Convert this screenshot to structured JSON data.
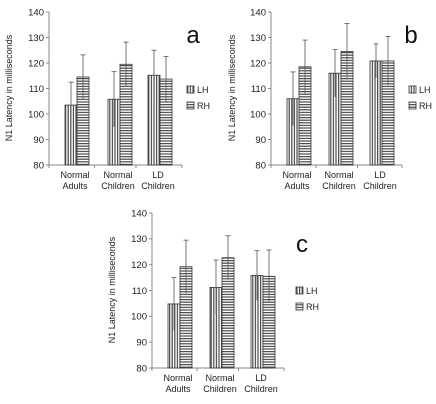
{
  "chart_data": [
    {
      "type": "bar",
      "panel_label": "a",
      "ylabel": "N1 Latency in milliseconds",
      "ylim": [
        80,
        140
      ],
      "yticks": [
        80,
        90,
        100,
        110,
        120,
        130,
        140
      ],
      "categories": [
        [
          "Normal",
          "Adults"
        ],
        [
          "Normal",
          "Children"
        ],
        [
          "LD",
          "Children"
        ]
      ],
      "series": [
        {
          "name": "LH",
          "values": [
            103.5,
            105.8,
            115.2
          ],
          "errors": [
            9.0,
            10.8,
            9.8
          ],
          "pattern": "vertical"
        },
        {
          "name": "RH",
          "values": [
            114.5,
            119.5,
            113.7
          ],
          "errors": [
            8.7,
            8.7,
            8.8
          ],
          "pattern": "horizontal"
        }
      ],
      "legend": "right",
      "grid": false
    },
    {
      "type": "bar",
      "panel_label": "b",
      "ylabel": "N1 Latency in milliseconds",
      "ylim": [
        80,
        140
      ],
      "yticks": [
        80,
        90,
        100,
        110,
        120,
        130,
        140
      ],
      "categories": [
        [
          "Normal",
          "Adults"
        ],
        [
          "Normal",
          "Children"
        ],
        [
          "LD",
          "Children"
        ]
      ],
      "series": [
        {
          "name": "LH",
          "values": [
            106.0,
            116.0,
            120.8
          ],
          "errors": [
            10.5,
            9.3,
            6.7
          ],
          "pattern": "vertical"
        },
        {
          "name": "RH",
          "values": [
            118.5,
            124.5,
            120.8
          ],
          "errors": [
            10.5,
            11.0,
            9.6
          ],
          "pattern": "horizontal"
        }
      ],
      "legend": "right",
      "grid": false
    },
    {
      "type": "bar",
      "panel_label": "c",
      "ylabel": "N1 Latency in milliseconds",
      "ylim": [
        80,
        140
      ],
      "yticks": [
        80,
        90,
        100,
        110,
        120,
        130,
        140
      ],
      "categories": [
        [
          "Normal",
          "Adults"
        ],
        [
          "Normal",
          "Children"
        ],
        [
          "LD",
          "Children"
        ]
      ],
      "series": [
        {
          "name": "LH",
          "values": [
            104.8,
            111.2,
            115.8
          ],
          "errors": [
            10.2,
            10.6,
            9.6
          ],
          "pattern": "vertical"
        },
        {
          "name": "RH",
          "values": [
            119.2,
            122.7,
            115.5
          ],
          "errors": [
            10.3,
            8.5,
            10.2
          ],
          "pattern": "horizontal"
        }
      ],
      "legend": "right",
      "grid": false
    }
  ],
  "colors": {
    "bar_fill": "#ffffff",
    "stripe": "#4a4a4a",
    "outline": "#333333",
    "axis": "#8a8a8a",
    "error_bar": "#555555"
  }
}
